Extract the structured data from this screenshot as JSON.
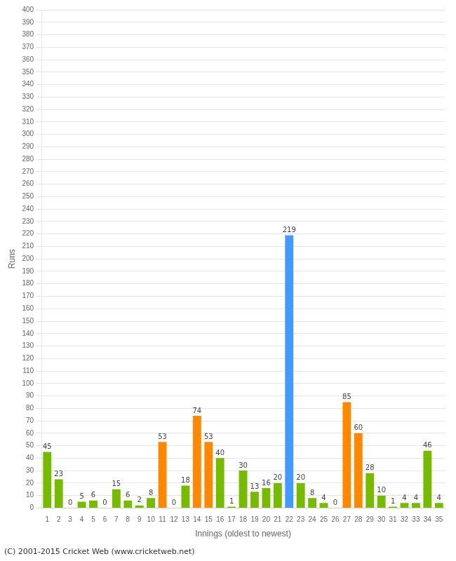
{
  "chart_data": {
    "type": "bar",
    "categories": [
      "1",
      "2",
      "3",
      "4",
      "5",
      "6",
      "7",
      "8",
      "9",
      "10",
      "11",
      "12",
      "13",
      "14",
      "15",
      "16",
      "17",
      "18",
      "19",
      "20",
      "21",
      "22",
      "23",
      "24",
      "25",
      "26",
      "27",
      "28",
      "29",
      "30",
      "31",
      "32",
      "33",
      "34",
      "35"
    ],
    "values": [
      45,
      23,
      0,
      5,
      6,
      0,
      15,
      6,
      2,
      8,
      53,
      0,
      18,
      74,
      53,
      40,
      1,
      30,
      13,
      16,
      20,
      219,
      20,
      8,
      4,
      0,
      85,
      60,
      28,
      10,
      1,
      4,
      4,
      46,
      4
    ],
    "colors": [
      "#77bb00",
      "#77bb00",
      "#77bb00",
      "#77bb00",
      "#77bb00",
      "#77bb00",
      "#77bb00",
      "#77bb00",
      "#77bb00",
      "#77bb00",
      "#ff8800",
      "#77bb00",
      "#77bb00",
      "#ff8800",
      "#ff8800",
      "#77bb00",
      "#77bb00",
      "#77bb00",
      "#77bb00",
      "#77bb00",
      "#77bb00",
      "#4499ff",
      "#77bb00",
      "#77bb00",
      "#77bb00",
      "#77bb00",
      "#ff8800",
      "#ff8800",
      "#77bb00",
      "#77bb00",
      "#77bb00",
      "#77bb00",
      "#77bb00",
      "#77bb00",
      "#77bb00"
    ],
    "xlabel": "Innings (oldest to newest)",
    "ylabel": "Runs",
    "ylim": [
      0,
      400
    ],
    "yticks": [
      0,
      10,
      20,
      30,
      40,
      50,
      60,
      70,
      80,
      90,
      100,
      110,
      120,
      130,
      140,
      150,
      160,
      170,
      180,
      190,
      200,
      210,
      220,
      230,
      240,
      250,
      260,
      270,
      280,
      290,
      300,
      310,
      320,
      330,
      340,
      350,
      360,
      370,
      380,
      390,
      400
    ],
    "grid": true,
    "data_labels": true,
    "annotations": [
      "(C) 2001-2015 Cricket Web (www.cricketweb.net)"
    ]
  }
}
